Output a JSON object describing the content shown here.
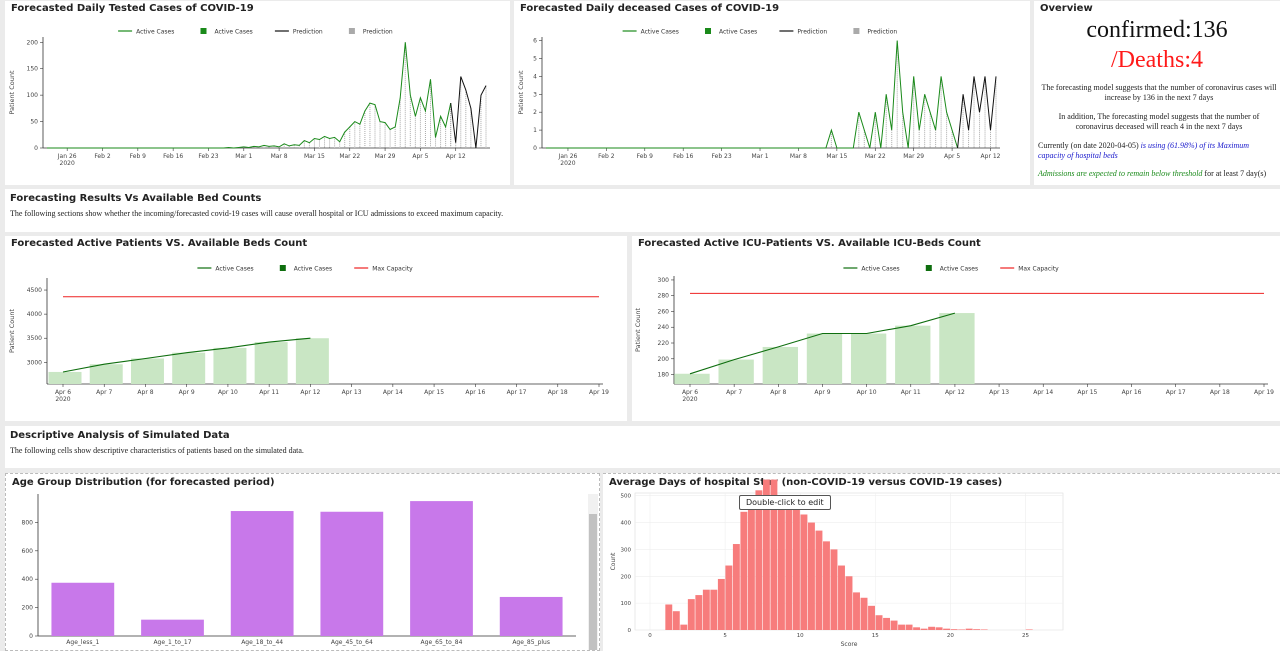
{
  "panels": {
    "tested": {
      "title": "Forecasted Daily Tested Cases of COVID-19"
    },
    "deceased": {
      "title": "Forecasted Daily deceased Cases of COVID-19"
    },
    "overview": {
      "title": "Overview",
      "confirmed_label": "confirmed:136",
      "deaths_label": "/Deaths:4",
      "para1": "The forecasting model suggests that the number of coronavirus cases will increase by 136 in the next 7 days",
      "para2": "In addition, The forecasting model suggests that the number of coronavirus deceased will reach 4 in the next 7 days",
      "currently_prefix": "Currently (on date 2020-04-05) ",
      "currently_blue": "is using (61.98%) of its Maximum capacity of hospital beds",
      "admissions_green": "Admissions are expected to remain below threshold",
      "admissions_suffix": " for at least 7 day(s)"
    },
    "forecast_results": {
      "title": "Forecasting Results Vs Available Bed Counts",
      "text": "The following sections show whether the incoming/forecasted covid-19 cases will cause overall hospital or ICU admissions to exceed maximum capacity."
    },
    "beds": {
      "title": "Forecasted Active Patients VS. Available Beds Count"
    },
    "icu": {
      "title": "Forecasted Active ICU-Patients VS. Available ICU-Beds Count"
    },
    "descriptive": {
      "title": "Descriptive Analysis of Simulated Data",
      "text": "The following cells show descriptive characteristics of patients based on the simulated data."
    },
    "age": {
      "title": "Age Group Distribution (for forecasted period)"
    },
    "stay": {
      "title": "Average Days of hospital Stay (non-COVID-19 versus COVID-19 cases)",
      "tooltip": "Double-click to edit"
    }
  },
  "colors": {
    "green": "#1a8a1a",
    "dark_green": "#0e6e0e",
    "black": "#111111",
    "gray": "#aaaaaa",
    "bar_light_green": "#c9e6c4",
    "red": "#ee2222",
    "purple": "#c878ea",
    "salmon": "#f77c7c",
    "deaths_red": "#ff1a1a",
    "blue_text": "#1a1acc",
    "green_text": "#1a8a1a"
  },
  "chart_data": [
    {
      "id": "tested",
      "type": "line",
      "title": "Forecasted Daily Tested Cases of COVID-19",
      "ylabel": "Patient Count",
      "ylim": [
        0,
        210
      ],
      "yticks": [
        0,
        50,
        100,
        150,
        200
      ],
      "xticks": [
        "Jan 26\n2020",
        "Feb 2",
        "Feb 9",
        "Feb 16",
        "Feb 23",
        "Mar 1",
        "Mar 8",
        "Mar 15",
        "Mar 22",
        "Mar 29",
        "Apr 5",
        "Apr 12"
      ],
      "legend": [
        "Active Cases",
        "Active Cases",
        "Prediction",
        "Prediction"
      ],
      "start_day": 0,
      "actual_start": 0,
      "actual": [
        0,
        0,
        0,
        0,
        0,
        0,
        0,
        0,
        0,
        0,
        0,
        0,
        0,
        0,
        0,
        0,
        0,
        0,
        0,
        0,
        0,
        0,
        0,
        0,
        0,
        0,
        0,
        0,
        0,
        0,
        0,
        0,
        0,
        0,
        0,
        0,
        1,
        0,
        1,
        2,
        1,
        3,
        2,
        5,
        3,
        4,
        2,
        8,
        4,
        6,
        5,
        14,
        10,
        18,
        16,
        22,
        18,
        20,
        12,
        30,
        40,
        50,
        45,
        70,
        85,
        82,
        50,
        48,
        35,
        40,
        95,
        200,
        100,
        60,
        95,
        70,
        130,
        20,
        60,
        40,
        85
      ],
      "pred_start_index": 80,
      "prediction": [
        85,
        10,
        135,
        110,
        75,
        0,
        100,
        118
      ],
      "day_offset_first": -4
    },
    {
      "id": "deceased",
      "type": "line",
      "title": "Forecasted Daily deceased Cases of COVID-19",
      "ylabel": "Patient Count",
      "ylim": [
        0,
        6.2
      ],
      "yticks": [
        0,
        1,
        2,
        3,
        4,
        5,
        6
      ],
      "xticks": [
        "Jan 26\n2020",
        "Feb 2",
        "Feb 9",
        "Feb 16",
        "Feb 23",
        "Mar 1",
        "Mar 8",
        "Mar 15",
        "Mar 22",
        "Mar 29",
        "Apr 5",
        "Apr 12"
      ],
      "legend": [
        "Active Cases",
        "Active Cases",
        "Prediction",
        "Prediction"
      ],
      "actual": [
        0,
        0,
        0,
        0,
        0,
        0,
        0,
        0,
        0,
        0,
        0,
        0,
        0,
        0,
        0,
        0,
        0,
        0,
        0,
        0,
        0,
        0,
        0,
        0,
        0,
        0,
        0,
        0,
        0,
        0,
        0,
        0,
        0,
        0,
        0,
        0,
        0,
        0,
        0,
        0,
        0,
        0,
        0,
        0,
        0,
        0,
        0,
        0,
        0,
        0,
        0,
        0,
        1,
        0,
        0,
        0,
        0,
        2,
        1,
        0,
        2,
        0,
        3,
        1,
        6,
        2,
        0,
        4,
        1,
        3,
        2,
        1,
        4,
        2,
        1,
        0
      ],
      "pred_start_index": 75,
      "prediction": [
        0,
        3,
        1,
        4,
        2,
        4,
        1,
        4
      ],
      "day_offset_first": -4
    },
    {
      "id": "beds",
      "type": "bar+line",
      "title": "Forecasted Active Patients VS. Available Beds Count",
      "ylabel": "Patient Count",
      "ylim": [
        2550,
        4750
      ],
      "yticks": [
        3000,
        3500,
        4000,
        4500
      ],
      "xticks": [
        "Apr 6\n2020",
        "Apr 7",
        "Apr 8",
        "Apr 9",
        "Apr 10",
        "Apr 11",
        "Apr 12",
        "Apr 13",
        "Apr 14",
        "Apr 15",
        "Apr 16",
        "Apr 17",
        "Apr 18",
        "Apr 19"
      ],
      "legend": [
        "Active Cases",
        "Active Cases",
        "Max Capacity"
      ],
      "values": [
        2800,
        2960,
        3080,
        3200,
        3300,
        3420,
        3500
      ],
      "max_capacity": 4360
    },
    {
      "id": "icu",
      "type": "bar+line",
      "title": "Forecasted Active ICU-Patients VS. Available ICU-Beds Count",
      "ylabel": "Patient Count",
      "ylim": [
        168,
        305
      ],
      "yticks": [
        180,
        200,
        220,
        240,
        260,
        280,
        300
      ],
      "xticks": [
        "Apr 6\n2020",
        "Apr 7",
        "Apr 8",
        "Apr 9",
        "Apr 10",
        "Apr 11",
        "Apr 12",
        "Apr 13",
        "Apr 14",
        "Apr 15",
        "Apr 16",
        "Apr 17",
        "Apr 18",
        "Apr 19"
      ],
      "legend": [
        "Active Cases",
        "Active Cases",
        "Max Capacity"
      ],
      "values": [
        181,
        199,
        215,
        232,
        232,
        242,
        258
      ],
      "max_capacity": 283
    },
    {
      "id": "age",
      "type": "bar",
      "title": "Age Group Distribution (for forecasted period)",
      "categories": [
        "Age_less_1",
        "Age_1_to_17",
        "Age_18_to_44",
        "Age_45_to_64",
        "Age_65_to_84",
        "Age_85_plus"
      ],
      "values": [
        375,
        115,
        880,
        875,
        950,
        275
      ],
      "ylim": [
        0,
        1000
      ],
      "yticks": [
        0,
        200,
        400,
        600,
        800
      ]
    },
    {
      "id": "stay",
      "type": "histogram",
      "title": "Average Days of hospital Stay (non-COVID-19 versus COVID-19 cases)",
      "xlabel": "Score",
      "ylabel": "Count",
      "bin_start": 1,
      "bin_width": 0.5,
      "counts": [
        95,
        70,
        20,
        115,
        130,
        150,
        150,
        190,
        240,
        320,
        440,
        480,
        520,
        560,
        560,
        500,
        480,
        475,
        430,
        400,
        370,
        330,
        300,
        240,
        200,
        140,
        120,
        90,
        55,
        45,
        35,
        20,
        20,
        10,
        5,
        12,
        10,
        5,
        3,
        2,
        5,
        3,
        2,
        0,
        0,
        0,
        0,
        0,
        2
      ],
      "ylim": [
        0,
        510
      ],
      "yticks": [
        0,
        100,
        200,
        300,
        400,
        500
      ],
      "xticks": [
        0,
        5,
        10,
        15,
        20,
        25
      ]
    }
  ]
}
